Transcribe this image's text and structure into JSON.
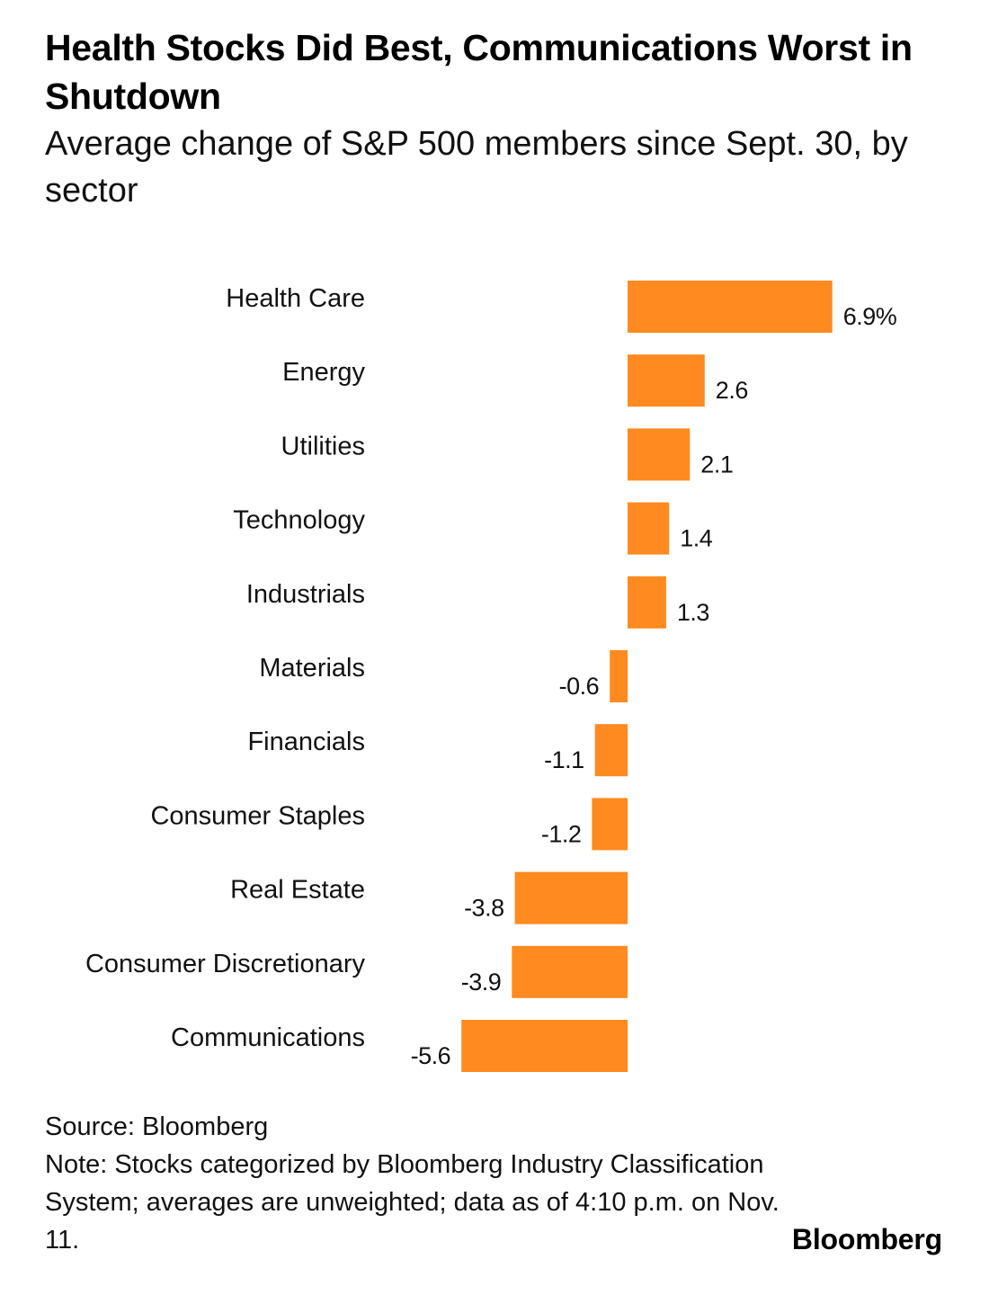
{
  "title": "Health Stocks Did Best, Communications Worst in Shutdown",
  "subtitle": "Average change of S&P 500 members since Sept. 30, by sector",
  "source": "Source: Bloomberg",
  "note": "Note: Stocks categorized by Bloomberg Industry Classification System; averages are unweighted; data as of 4:10 p.m. on Nov. 11.",
  "brand": "Bloomberg",
  "colors": {
    "bar": "#FF8A1F",
    "text": "#000000"
  },
  "chart_data": {
    "type": "bar",
    "orientation": "horizontal",
    "title": "Health Stocks Did Best, Communications Worst in Shutdown",
    "subtitle": "Average change of S&P 500 members since Sept. 30, by sector",
    "xlabel": "",
    "ylabel": "",
    "unit": "%",
    "xlim": [
      -5.6,
      6.9
    ],
    "categories": [
      "Health Care",
      "Energy",
      "Utilities",
      "Technology",
      "Industrials",
      "Materials",
      "Financials",
      "Consumer Staples",
      "Real Estate",
      "Consumer Discretionary",
      "Communications"
    ],
    "values": [
      6.9,
      2.6,
      2.1,
      1.4,
      1.3,
      -0.6,
      -1.1,
      -1.2,
      -3.8,
      -3.9,
      -5.6
    ],
    "labels": [
      "6.9%",
      "2.6",
      "2.1",
      "1.4",
      "1.3",
      "-0.6",
      "-1.1",
      "-1.2",
      "-3.8",
      "-3.9",
      "-5.6"
    ]
  }
}
